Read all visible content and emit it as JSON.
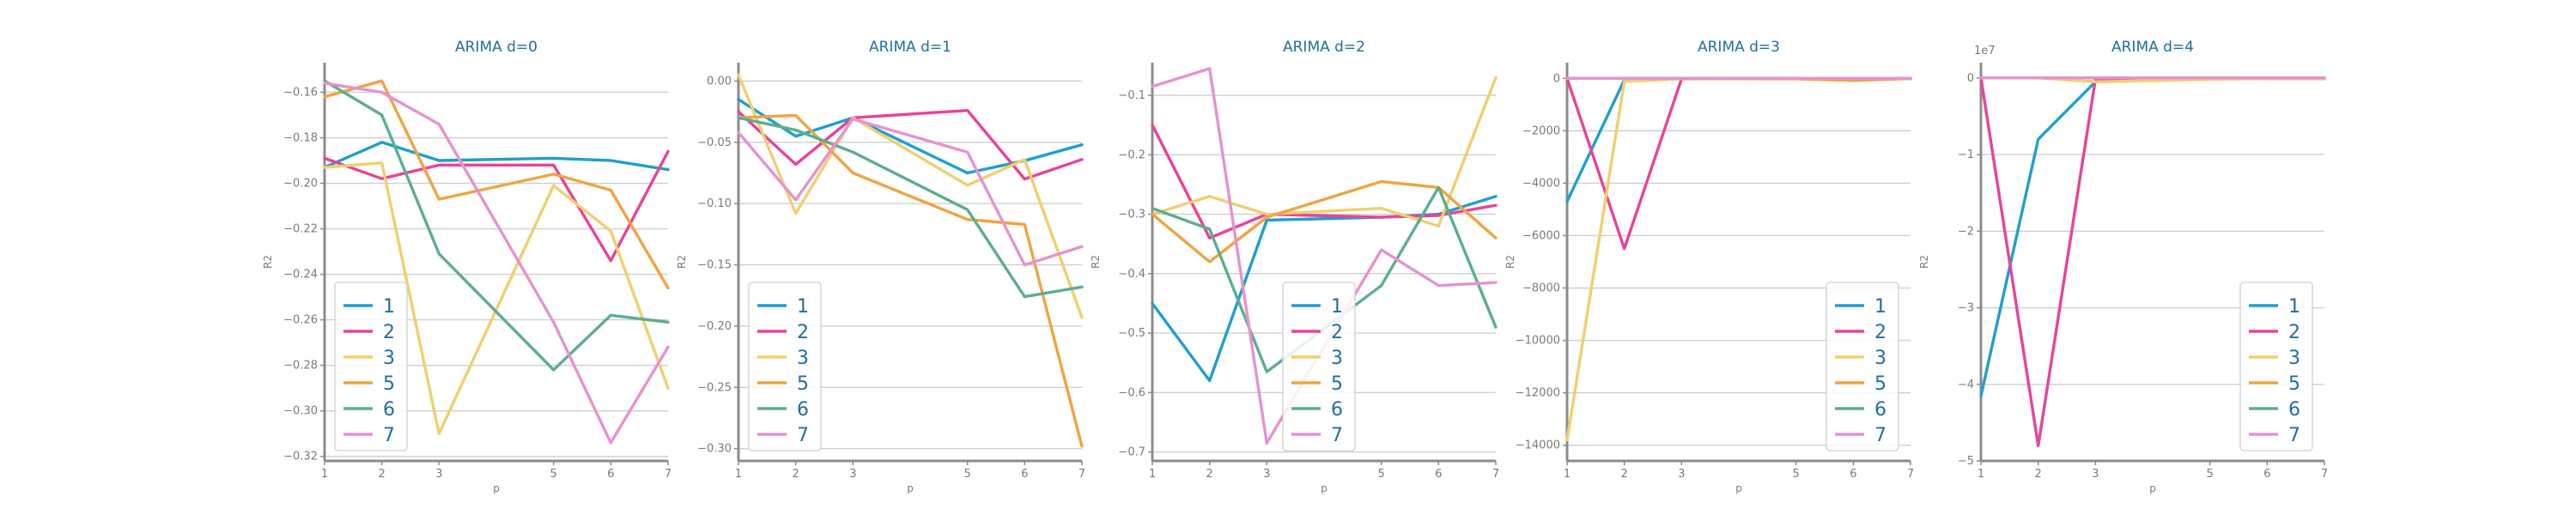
{
  "colors": {
    "1": "#1f9fcf",
    "2": "#e8439a",
    "3": "#f0cf6e",
    "5": "#f0a441",
    "6": "#5cae90",
    "7": "#e692d0"
  },
  "chart_data": [
    {
      "type": "line",
      "title": "ARIMA d=0",
      "xlabel": "p",
      "ylabel": "R2",
      "x": [
        1,
        2,
        3,
        5,
        6,
        7
      ],
      "xlim": [
        1,
        7
      ],
      "ylim": [
        -0.322,
        -0.147
      ],
      "yticks": [
        -0.32,
        -0.3,
        -0.28,
        -0.26,
        -0.24,
        -0.22,
        -0.2,
        -0.18,
        -0.16
      ],
      "yticklabels": [
        "−0.32",
        "−0.30",
        "−0.28",
        "−0.26",
        "−0.24",
        "−0.22",
        "−0.20",
        "−0.18",
        "−0.16"
      ],
      "exponent": "",
      "legend": {
        "position": "lower-left"
      },
      "series": [
        {
          "name": "1",
          "values": [
            -0.193,
            -0.182,
            -0.19,
            -0.189,
            -0.19,
            -0.194
          ]
        },
        {
          "name": "2",
          "values": [
            -0.189,
            -0.198,
            -0.192,
            -0.192,
            -0.234,
            -0.186
          ]
        },
        {
          "name": "3",
          "values": [
            -0.193,
            -0.191,
            -0.31,
            -0.201,
            -0.221,
            -0.29
          ]
        },
        {
          "name": "5",
          "values": [
            -0.162,
            -0.155,
            -0.207,
            -0.196,
            -0.203,
            -0.246
          ]
        },
        {
          "name": "6",
          "values": [
            -0.155,
            -0.17,
            -0.231,
            -0.282,
            -0.258,
            -0.261
          ]
        },
        {
          "name": "7",
          "values": [
            -0.156,
            -0.16,
            -0.174,
            -0.261,
            -0.314,
            -0.272
          ]
        }
      ]
    },
    {
      "type": "line",
      "title": "ARIMA d=1",
      "xlabel": "p",
      "ylabel": "R2",
      "x": [
        1,
        2,
        3,
        5,
        6,
        7
      ],
      "xlim": [
        1,
        7
      ],
      "ylim": [
        -0.31,
        0.015
      ],
      "yticks": [
        -0.3,
        -0.25,
        -0.2,
        -0.15,
        -0.1,
        -0.05,
        0.0
      ],
      "yticklabels": [
        "−0.30",
        "−0.25",
        "−0.20",
        "−0.15",
        "−0.10",
        "−0.05",
        "0.00"
      ],
      "exponent": "",
      "legend": {
        "position": "lower-left"
      },
      "series": [
        {
          "name": "1",
          "values": [
            -0.015,
            -0.045,
            -0.03,
            -0.075,
            -0.065,
            -0.052
          ]
        },
        {
          "name": "2",
          "values": [
            -0.025,
            -0.068,
            -0.03,
            -0.024,
            -0.08,
            -0.064
          ]
        },
        {
          "name": "3",
          "values": [
            0.005,
            -0.108,
            -0.03,
            -0.085,
            -0.064,
            -0.193
          ]
        },
        {
          "name": "5",
          "values": [
            -0.03,
            -0.028,
            -0.075,
            -0.113,
            -0.117,
            -0.298
          ]
        },
        {
          "name": "6",
          "values": [
            -0.03,
            -0.04,
            -0.058,
            -0.105,
            -0.176,
            -0.168
          ]
        },
        {
          "name": "7",
          "values": [
            -0.042,
            -0.097,
            -0.031,
            -0.058,
            -0.15,
            -0.135
          ]
        }
      ]
    },
    {
      "type": "line",
      "title": "ARIMA d=2",
      "xlabel": "p",
      "ylabel": "R2",
      "x": [
        1,
        2,
        3,
        5,
        6,
        7
      ],
      "xlim": [
        1,
        7
      ],
      "ylim": [
        -0.715,
        -0.045
      ],
      "yticks": [
        -0.7,
        -0.6,
        -0.5,
        -0.4,
        -0.3,
        -0.2,
        -0.1
      ],
      "yticklabels": [
        "−0.7",
        "−0.6",
        "−0.5",
        "−0.4",
        "−0.3",
        "−0.2",
        "−0.1"
      ],
      "exponent": "",
      "legend": {
        "position": "lower-center"
      },
      "series": [
        {
          "name": "1",
          "values": [
            -0.45,
            -0.58,
            -0.31,
            -0.305,
            -0.3,
            -0.27
          ]
        },
        {
          "name": "2",
          "values": [
            -0.15,
            -0.34,
            -0.3,
            -0.305,
            -0.302,
            -0.285
          ]
        },
        {
          "name": "3",
          "values": [
            -0.3,
            -0.27,
            -0.3,
            -0.29,
            -0.32,
            -0.07
          ]
        },
        {
          "name": "5",
          "values": [
            -0.3,
            -0.38,
            -0.305,
            -0.245,
            -0.255,
            -0.34
          ]
        },
        {
          "name": "6",
          "values": [
            -0.29,
            -0.325,
            -0.565,
            -0.42,
            -0.255,
            -0.49
          ]
        },
        {
          "name": "7",
          "values": [
            -0.085,
            -0.055,
            -0.685,
            -0.36,
            -0.42,
            -0.415
          ]
        }
      ]
    },
    {
      "type": "line",
      "title": "ARIMA d=3",
      "xlabel": "p",
      "ylabel": "R2",
      "x": [
        1,
        2,
        3,
        5,
        6,
        7
      ],
      "xlim": [
        1,
        7
      ],
      "ylim": [
        -14600,
        600
      ],
      "yticks": [
        -14000,
        -12000,
        -10000,
        -8000,
        -6000,
        -4000,
        -2000,
        0
      ],
      "yticklabels": [
        "−14000",
        "−12000",
        "−10000",
        "−8000",
        "−6000",
        "−4000",
        "−2000",
        "0"
      ],
      "exponent": "",
      "legend": {
        "position": "lower-right"
      },
      "series": [
        {
          "name": "1",
          "values": [
            -4700,
            -60,
            -10,
            -5,
            -5,
            -5
          ]
        },
        {
          "name": "2",
          "values": [
            0,
            -6500,
            -20,
            -5,
            -5,
            -5
          ]
        },
        {
          "name": "3",
          "values": [
            -13800,
            -120,
            -15,
            -5,
            -5,
            -5
          ]
        },
        {
          "name": "5",
          "values": [
            0,
            0,
            -10,
            -20,
            -80,
            -10
          ]
        },
        {
          "name": "6",
          "values": [
            0,
            0,
            0,
            0,
            0,
            0
          ]
        },
        {
          "name": "7",
          "values": [
            0,
            0,
            0,
            0,
            0,
            0
          ]
        }
      ]
    },
    {
      "type": "line",
      "title": "ARIMA d=4",
      "xlabel": "p",
      "ylabel": "R2",
      "x": [
        1,
        2,
        3,
        5,
        6,
        7
      ],
      "xlim": [
        1,
        7
      ],
      "ylim": [
        -5.0,
        0.2
      ],
      "yticks": [
        -5,
        -4,
        -3,
        -2,
        -1,
        0
      ],
      "yticklabels": [
        "−5",
        "−4",
        "−3",
        "−2",
        "−1",
        "0"
      ],
      "exponent": "1e7",
      "legend": {
        "position": "lower-right"
      },
      "series": [
        {
          "name": "1",
          "values": [
            -4.15,
            -0.8,
            -0.05,
            -0.01,
            -0.01,
            -0.01
          ]
        },
        {
          "name": "2",
          "values": [
            0,
            -4.8,
            -0.02,
            -0.01,
            -0.01,
            -0.01
          ]
        },
        {
          "name": "3",
          "values": [
            0,
            0,
            -0.05,
            -0.02,
            -0.01,
            -0.01
          ]
        },
        {
          "name": "5",
          "values": [
            0,
            0,
            0,
            0,
            0,
            0
          ]
        },
        {
          "name": "6",
          "values": [
            0,
            0,
            0,
            0,
            0,
            0
          ]
        },
        {
          "name": "7",
          "values": [
            0,
            0,
            0,
            0,
            0,
            0
          ]
        }
      ]
    }
  ]
}
